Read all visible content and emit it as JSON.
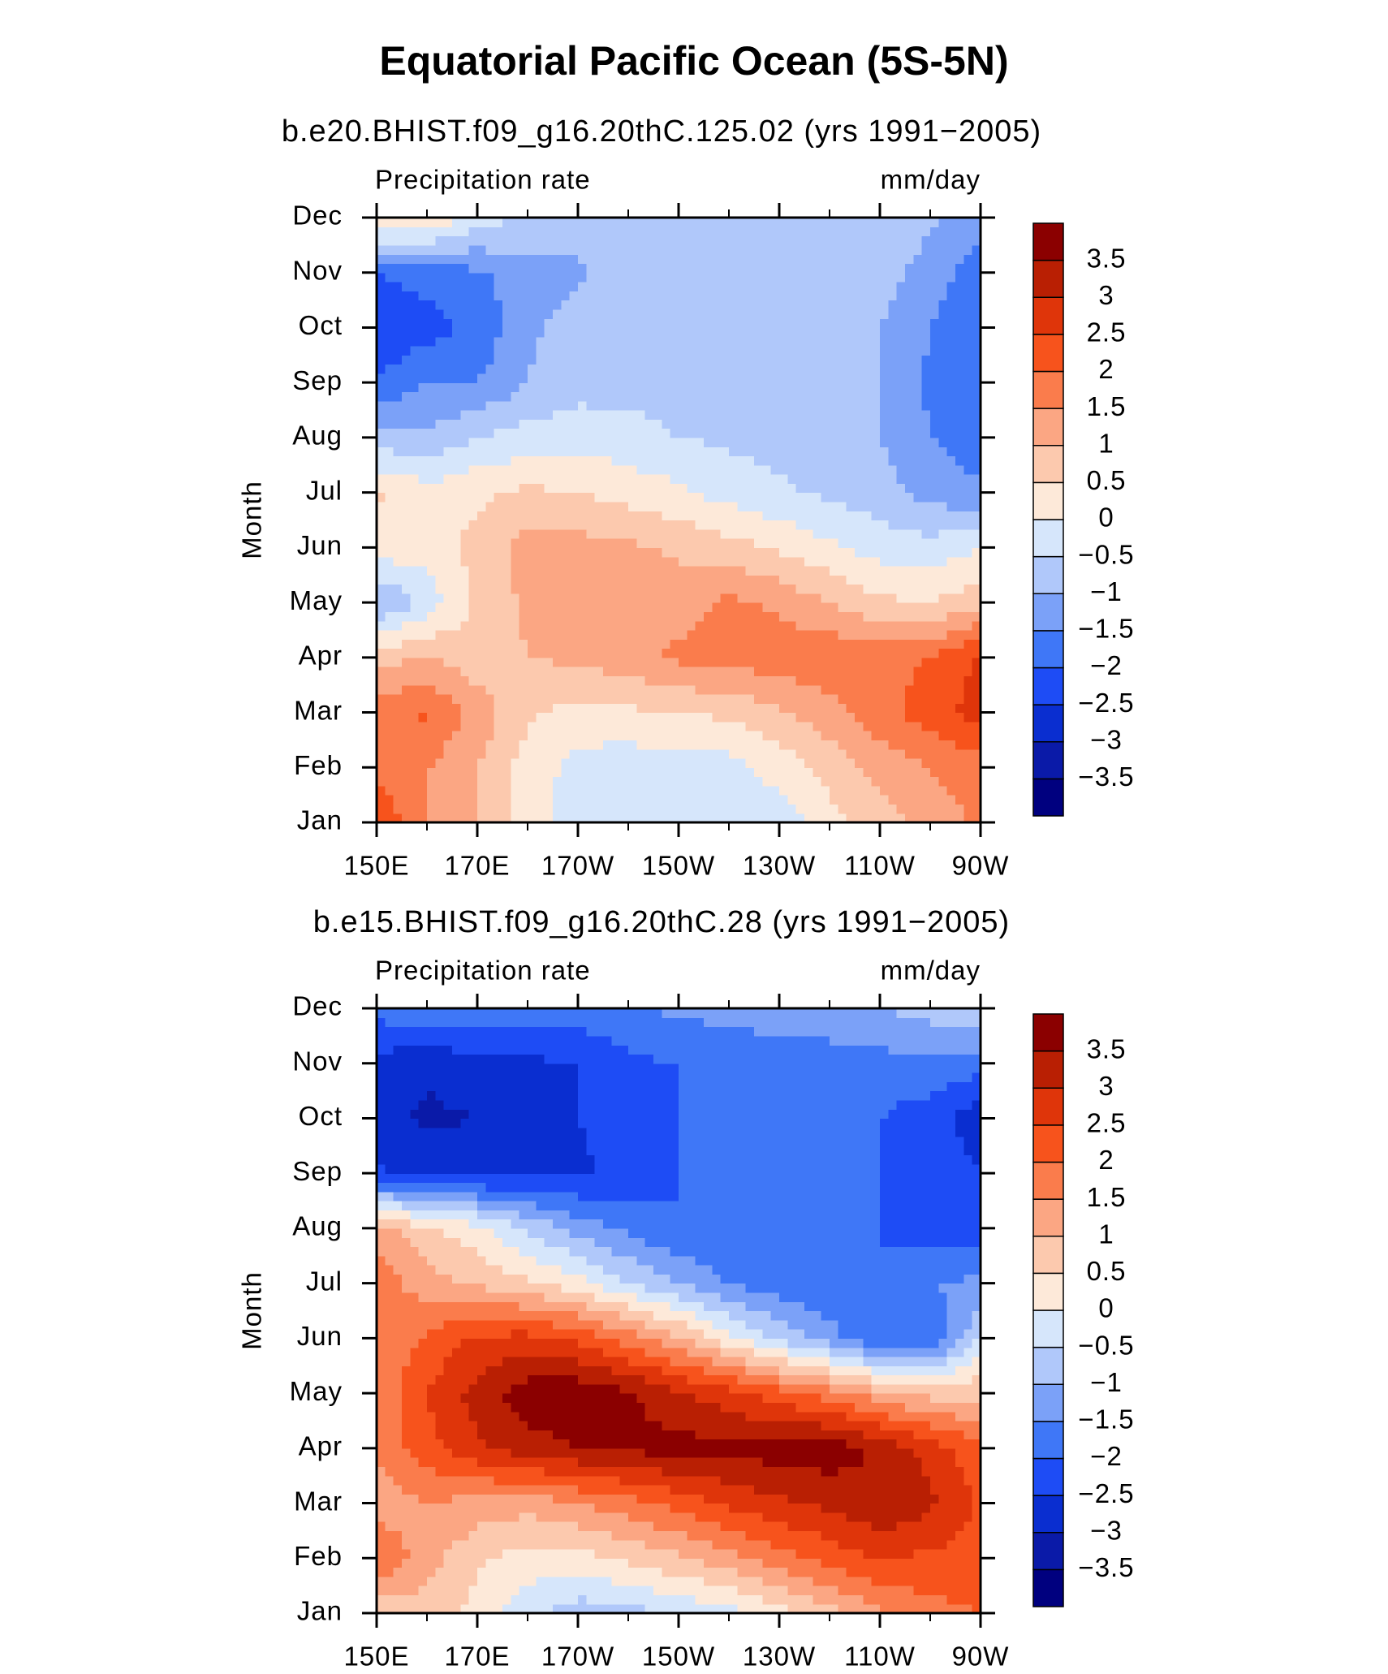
{
  "title": "Equatorial Pacific Ocean (5S-5N)",
  "chart_data": [
    {
      "type": "contour",
      "subtitle": "b.e20.BHIST.f09_g16.20thC.125.02 (yrs 1991−2005)",
      "left_label": "Precipitation rate",
      "right_label": "mm/day",
      "y_label": "Month",
      "categories": [
        "Jan",
        "Feb",
        "Mar",
        "Apr",
        "May",
        "Jun",
        "Jul",
        "Aug",
        "Sep",
        "Oct",
        "Nov",
        "Dec"
      ],
      "x": [
        150,
        160,
        170,
        180,
        190,
        200,
        210,
        220,
        230,
        240,
        250,
        260,
        270
      ],
      "xlim": [
        150,
        270
      ],
      "xticks": [
        {
          "value": 150,
          "label": "150E"
        },
        {
          "value": 170,
          "label": "170E"
        },
        {
          "value": 190,
          "label": "170W"
        },
        {
          "value": 210,
          "label": "150W"
        },
        {
          "value": 230,
          "label": "130W"
        },
        {
          "value": 250,
          "label": "110W"
        },
        {
          "value": 270,
          "label": "90W"
        }
      ],
      "levels": [
        {
          "value": -3.5,
          "label": "−3.5"
        },
        {
          "value": -3,
          "label": "−3"
        },
        {
          "value": -2.5,
          "label": "−2.5"
        },
        {
          "value": -2,
          "label": "−2"
        },
        {
          "value": -1.5,
          "label": "−1.5"
        },
        {
          "value": -1,
          "label": "−1"
        },
        {
          "value": -0.5,
          "label": "−0.5"
        },
        0,
        0.5,
        1,
        1.5,
        2,
        2.5,
        3,
        3.5
      ],
      "colors": [
        "#00007f",
        "#0a1aa8",
        "#0a2ed0",
        "#1e4cf5",
        "#3f77f7",
        "#7ba1f8",
        "#b0c8fa",
        "#d6e6fb",
        "#fde9d9",
        "#fcc9ae",
        "#fba683",
        "#fa7c4c",
        "#f7531c",
        "#df350a",
        "#b91f03",
        "#8b0000"
      ],
      "z": [
        [
          2.5,
          1.5,
          1.0,
          0.3,
          -0.3,
          -0.3,
          -0.3,
          -0.3,
          -0.3,
          0.3,
          0.7,
          1.2,
          1.6
        ],
        [
          1.8,
          1.5,
          1.0,
          0.3,
          -0.2,
          -0.3,
          -0.3,
          -0.2,
          0.2,
          0.7,
          1.2,
          1.5,
          1.8
        ],
        [
          1.7,
          2.1,
          1.3,
          0.6,
          0.3,
          0.4,
          0.5,
          0.6,
          0.9,
          1.3,
          1.8,
          2.3,
          2.7
        ],
        [
          0.8,
          1.0,
          0.7,
          1.0,
          1.1,
          1.3,
          1.6,
          1.7,
          1.8,
          1.9,
          1.8,
          2.0,
          2.6
        ],
        [
          -1.1,
          -0.3,
          0.6,
          1.1,
          1.3,
          1.3,
          1.3,
          1.6,
          1.4,
          1.0,
          0.6,
          0.5,
          0.8
        ],
        [
          0.3,
          0.2,
          0.7,
          1.2,
          1.2,
          1.1,
          0.9,
          0.7,
          0.4,
          0.1,
          -0.2,
          -0.3,
          0.0
        ],
        [
          0.6,
          0.2,
          0.4,
          0.6,
          0.5,
          0.3,
          0.1,
          -0.2,
          -0.4,
          -0.6,
          -0.8,
          -1.2,
          -1.4
        ],
        [
          -0.8,
          -0.9,
          -0.5,
          -0.3,
          -0.2,
          -0.3,
          -0.5,
          -0.6,
          -0.7,
          -0.8,
          -1.0,
          -1.5,
          -1.8
        ],
        [
          -2.0,
          -1.5,
          -1.5,
          -1.0,
          -0.7,
          -0.7,
          -0.7,
          -0.7,
          -0.7,
          -0.8,
          -1.0,
          -1.6,
          -2.0
        ],
        [
          -2.4,
          -2.2,
          -1.9,
          -1.1,
          -0.8,
          -0.7,
          -0.7,
          -0.7,
          -0.7,
          -0.7,
          -1.0,
          -1.5,
          -2.0
        ],
        [
          -2.0,
          -1.8,
          -1.6,
          -1.2,
          -1.1,
          -0.7,
          -0.7,
          -0.7,
          -0.7,
          -0.7,
          -0.8,
          -1.2,
          -1.8
        ],
        [
          0.6,
          0.5,
          -0.2,
          -0.6,
          -0.7,
          -0.7,
          -0.7,
          -0.7,
          -0.7,
          -0.7,
          -0.7,
          -0.9,
          -1.2
        ]
      ]
    },
    {
      "type": "contour",
      "subtitle": "b.e15.BHIST.f09_g16.20thC.28 (yrs 1991−2005)",
      "left_label": "Precipitation rate",
      "right_label": "mm/day",
      "y_label": "Month",
      "categories": [
        "Jan",
        "Feb",
        "Mar",
        "Apr",
        "May",
        "Jun",
        "Jul",
        "Aug",
        "Sep",
        "Oct",
        "Nov",
        "Dec"
      ],
      "x": [
        150,
        160,
        170,
        180,
        190,
        200,
        210,
        220,
        230,
        240,
        250,
        260,
        270
      ],
      "xlim": [
        150,
        270
      ],
      "xticks": [
        {
          "value": 150,
          "label": "150E"
        },
        {
          "value": 170,
          "label": "170E"
        },
        {
          "value": 190,
          "label": "170W"
        },
        {
          "value": 210,
          "label": "150W"
        },
        {
          "value": 230,
          "label": "130W"
        },
        {
          "value": 250,
          "label": "110W"
        },
        {
          "value": 270,
          "label": "90W"
        }
      ],
      "levels": [
        {
          "value": -3.5,
          "label": "−3.5"
        },
        {
          "value": -3,
          "label": "−3"
        },
        {
          "value": -2.5,
          "label": "−2.5"
        },
        {
          "value": -2,
          "label": "−2"
        },
        {
          "value": -1.5,
          "label": "−1.5"
        },
        {
          "value": -1,
          "label": "−1"
        },
        {
          "value": -0.5,
          "label": "−0.5"
        },
        0,
        0.5,
        1,
        1.5,
        2,
        2.5,
        3,
        3.5
      ],
      "colors": [
        "#00007f",
        "#0a1aa8",
        "#0a2ed0",
        "#1e4cf5",
        "#3f77f7",
        "#7ba1f8",
        "#b0c8fa",
        "#d6e6fb",
        "#fde9d9",
        "#fcc9ae",
        "#fba683",
        "#fa7c4c",
        "#f7531c",
        "#df350a",
        "#b91f03",
        "#8b0000"
      ],
      "z": [
        [
          0.6,
          0.8,
          0.3,
          -0.3,
          -0.8,
          -0.7,
          -0.4,
          -0.2,
          0.3,
          0.8,
          1.4,
          1.8,
          2.0
        ],
        [
          2.0,
          1.2,
          0.6,
          0.3,
          0.3,
          0.6,
          0.9,
          1.3,
          1.8,
          2.2,
          2.5,
          2.4,
          2.3
        ],
        [
          1.2,
          1.5,
          1.3,
          1.2,
          1.5,
          1.8,
          2.2,
          2.6,
          2.9,
          3.1,
          3.5,
          3.1,
          2.4
        ],
        [
          1.6,
          2.3,
          2.9,
          3.3,
          3.5,
          3.6,
          3.7,
          3.6,
          3.8,
          3.8,
          3.4,
          2.8,
          2.1
        ],
        [
          1.5,
          2.5,
          3.2,
          3.8,
          3.9,
          3.6,
          3.1,
          2.7,
          2.2,
          1.8,
          1.2,
          0.8,
          0.9
        ],
        [
          1.6,
          2.1,
          2.6,
          2.7,
          2.4,
          1.8,
          1.1,
          0.2,
          -0.6,
          -1.3,
          -2.0,
          -2.0,
          -0.5
        ],
        [
          1.8,
          1.2,
          0.9,
          0.6,
          0.2,
          -0.5,
          -1.0,
          -1.5,
          -1.8,
          -1.9,
          -2.0,
          -1.5,
          -1.4
        ],
        [
          1.3,
          0.6,
          0.2,
          -0.6,
          -1.2,
          -1.6,
          -2.0,
          -2.0,
          -2.0,
          -2.0,
          -2.0,
          -2.2,
          -2.3
        ],
        [
          -2.4,
          -2.7,
          -2.7,
          -2.6,
          -2.6,
          -2.3,
          -2.0,
          -2.0,
          -2.0,
          -2.0,
          -2.0,
          -2.1,
          -2.5
        ],
        [
          -2.8,
          -3.1,
          -3.0,
          -2.6,
          -2.5,
          -2.3,
          -2.0,
          -2.0,
          -2.0,
          -2.0,
          -2.0,
          -2.3,
          -2.8
        ],
        [
          -2.7,
          -2.9,
          -2.7,
          -2.6,
          -2.5,
          -2.1,
          -2.0,
          -1.9,
          -1.8,
          -1.8,
          -1.7,
          -1.6,
          -1.8
        ],
        [
          -1.8,
          -1.5,
          -1.7,
          -1.8,
          -1.7,
          -1.6,
          -1.4,
          -1.3,
          -1.2,
          -1.1,
          -1.0,
          -0.8,
          -0.5
        ]
      ]
    }
  ]
}
